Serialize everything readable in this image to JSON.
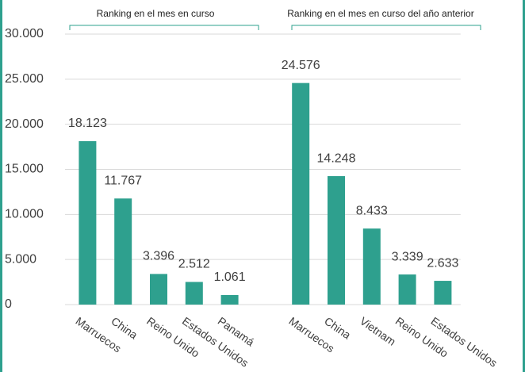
{
  "chart_data": {
    "type": "bar",
    "annotations": [
      "Ranking en el mes en curso",
      "Ranking en el mes en curso del año anterior"
    ],
    "categories": [
      "Marruecos",
      "China",
      "Reino Unido",
      "Estados Unidos",
      "Panamá",
      null,
      "Marruecos",
      "China",
      "Vietnam",
      "Reino Unido",
      "Estados Unidos"
    ],
    "values": [
      18123,
      11767,
      3396,
      2512,
      1061,
      null,
      24576,
      14248,
      8433,
      3339,
      2633
    ],
    "value_labels": [
      "18.123",
      "11.767",
      "3.396",
      "2.512",
      "1.061",
      null,
      "24.576",
      "14.248",
      "8.433",
      "3.339",
      "2.633"
    ],
    "color": "#2ea08e",
    "ylim": [
      0,
      30000
    ],
    "yticks": [
      0,
      {
        "value": 5000,
        "label": "5.000"
      },
      {
        "value": 10000,
        "label": "10.000"
      },
      {
        "value": 15000,
        "label": "15.000"
      },
      {
        "value": 20000,
        "label": "20.000"
      },
      {
        "value": 25000,
        "label": "25.000"
      },
      {
        "value": 30000,
        "label": "30.000"
      }
    ],
    "grid": true
  }
}
